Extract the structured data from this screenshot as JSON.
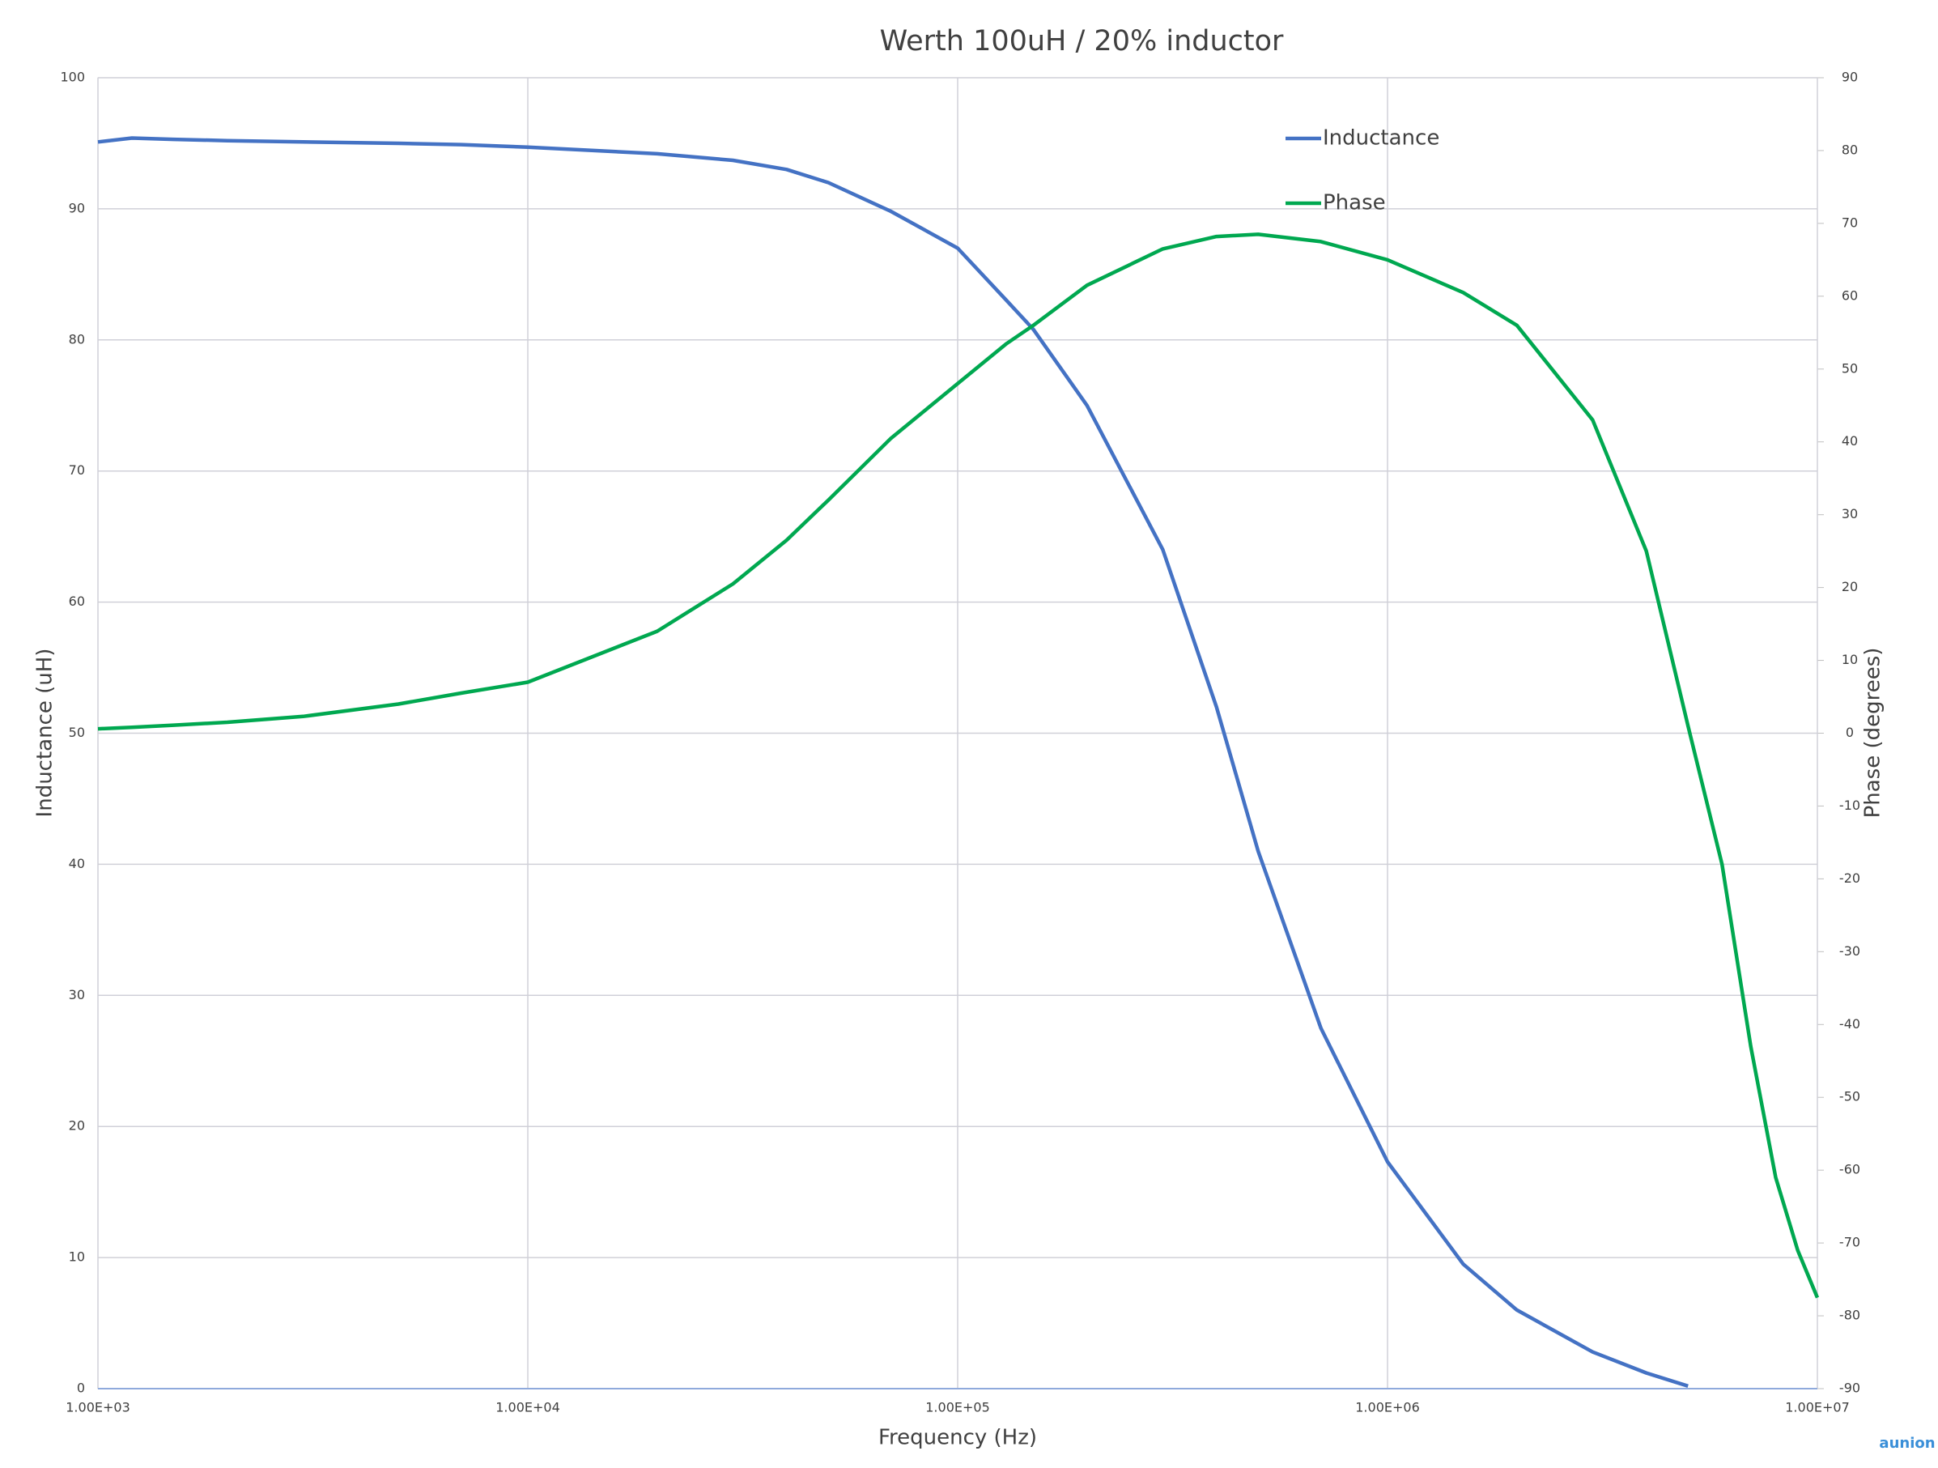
{
  "chart_data": {
    "type": "line",
    "title": "Werth 100uH / 20% inductor",
    "x_label": "Frequency (Hz)",
    "y_label": "Inductance (uH)",
    "y2_label": "Phase (degrees)",
    "x_log": true,
    "grid": true,
    "legend": "top-right",
    "xlim": [
      1000,
      10000000
    ],
    "xticks": [
      {
        "value": 1000,
        "label": "1.00E+03"
      },
      {
        "value": 10000,
        "label": "1.00E+04"
      },
      {
        "value": 100000,
        "label": "1.00E+05"
      },
      {
        "value": 1000000,
        "label": "1.00E+06"
      },
      {
        "value": 10000000,
        "label": "1.00E+07"
      }
    ],
    "ylim": [
      0,
      100
    ],
    "yticks": [
      0,
      10,
      20,
      30,
      40,
      50,
      60,
      70,
      80,
      90,
      100
    ],
    "y2lim": [
      -90,
      90
    ],
    "y2ticks": [
      -90,
      -80,
      -70,
      -60,
      -50,
      -40,
      -30,
      -20,
      -10,
      0,
      10,
      20,
      30,
      40,
      50,
      60,
      70,
      80,
      90
    ],
    "x": [
      1000,
      1200,
      1500,
      2000,
      3000,
      5000,
      7000,
      10000,
      20000,
      30000,
      40000,
      50000,
      70000,
      100000,
      130000,
      150000,
      200000,
      300000,
      400000,
      500000,
      700000,
      1000000,
      1500000,
      2000000,
      3000000,
      4000000,
      5000000,
      6000000,
      7000000,
      8000000,
      9000000,
      10000000
    ],
    "series": [
      {
        "name": "Inductance",
        "color": "#4472c4",
        "values": [
          95.1,
          95.4,
          95.3,
          95.2,
          95.1,
          95.0,
          94.9,
          94.7,
          94.2,
          93.7,
          93.0,
          92.0,
          89.8,
          87.0,
          83.0,
          80.8,
          75.0,
          64.0,
          52.0,
          41.0,
          27.5,
          17.3,
          9.5,
          6.0,
          2.8,
          1.2,
          0.2,
          null,
          null,
          null,
          null,
          null
        ]
      },
      {
        "name": "Phase",
        "color": "#00a850",
        "axis": "y2",
        "values": [
          0.6,
          0.8,
          1.1,
          1.5,
          2.3,
          4.0,
          5.5,
          7.0,
          14.0,
          20.5,
          26.5,
          32.0,
          40.5,
          48.0,
          53.5,
          56.0,
          61.5,
          66.5,
          68.2,
          68.5,
          67.5,
          65.0,
          60.5,
          56.0,
          43.0,
          25.0,
          1.0,
          -18.0,
          -43.0,
          -61.0,
          -71.0,
          -77.5
        ]
      }
    ],
    "watermark": "aunion"
  }
}
